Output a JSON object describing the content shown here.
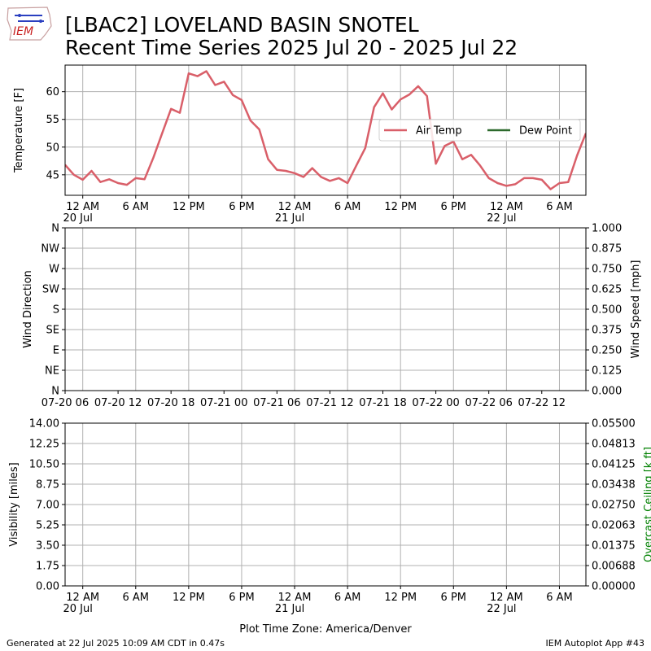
{
  "header": {
    "logo_text": "IEM",
    "title_line1": "[LBAC2] LOVELAND BASIN SNOTEL",
    "title_line2": "Recent Time Series 2025 Jul 20 - 2025 Jul 22"
  },
  "footer": {
    "generated": "Generated at 22 Jul 2025 10:09 AM CDT in 0.47s",
    "app": "IEM Autoplot App #43",
    "timezone_label": "Plot Time Zone: America/Denver"
  },
  "colors": {
    "air_temp": "#d95f69",
    "dew_point": "#2d6a2d",
    "ceiling_label": "#008000",
    "grid": "#b0b0b0"
  },
  "time_axis": {
    "start_hour": -2,
    "end_hour": 57,
    "ticks": [
      {
        "hour": 0,
        "label": "12 AM",
        "sub": "20 Jul"
      },
      {
        "hour": 6,
        "label": "6 AM",
        "sub": ""
      },
      {
        "hour": 12,
        "label": "12 PM",
        "sub": ""
      },
      {
        "hour": 18,
        "label": "6 PM",
        "sub": ""
      },
      {
        "hour": 24,
        "label": "12 AM",
        "sub": "21 Jul"
      },
      {
        "hour": 30,
        "label": "6 AM",
        "sub": ""
      },
      {
        "hour": 36,
        "label": "12 PM",
        "sub": ""
      },
      {
        "hour": 42,
        "label": "6 PM",
        "sub": ""
      },
      {
        "hour": 48,
        "label": "12 AM",
        "sub": "22 Jul"
      },
      {
        "hour": 54,
        "label": "6 AM",
        "sub": ""
      }
    ],
    "wind_ticks": [
      {
        "hour": -2,
        "label": "07-20 06"
      },
      {
        "hour": 4,
        "label": "07-20 12"
      },
      {
        "hour": 10,
        "label": "07-20 18"
      },
      {
        "hour": 16,
        "label": "07-21 00"
      },
      {
        "hour": 22,
        "label": "07-21 06"
      },
      {
        "hour": 28,
        "label": "07-21 12"
      },
      {
        "hour": 34,
        "label": "07-21 18"
      },
      {
        "hour": 40,
        "label": "07-22 00"
      },
      {
        "hour": 46,
        "label": "07-22 06"
      },
      {
        "hour": 52,
        "label": "07-22 12"
      }
    ]
  },
  "chart_data": [
    {
      "type": "line",
      "ylabel": "Temperature [F]",
      "ylim": [
        41.3,
        64.8
      ],
      "yticks": [
        45,
        50,
        55,
        60
      ],
      "grid": true,
      "legend_position": "right",
      "series": [
        {
          "name": "Air Temp",
          "x": [
            -2,
            -1,
            0,
            1,
            2,
            3,
            4,
            5,
            6,
            7,
            8,
            9,
            10,
            11,
            12,
            13,
            14,
            15,
            16,
            17,
            18,
            19,
            20,
            21,
            22,
            23,
            24,
            25,
            26,
            27,
            28,
            29,
            30,
            31,
            32,
            33,
            34,
            35,
            36,
            37,
            38,
            39,
            40,
            41,
            42,
            43,
            44,
            45,
            46,
            47,
            48,
            49,
            50,
            51,
            52,
            53,
            54,
            55,
            56,
            57
          ],
          "values": [
            46.8,
            45.0,
            44.1,
            45.7,
            43.7,
            44.2,
            43.5,
            43.2,
            44.4,
            44.2,
            48.1,
            52.5,
            56.9,
            56.2,
            63.3,
            62.8,
            63.7,
            61.2,
            61.8,
            59.4,
            58.5,
            54.8,
            53.2,
            47.8,
            45.9,
            45.7,
            45.3,
            44.6,
            46.2,
            44.6,
            43.9,
            44.4,
            43.5,
            46.7,
            49.8,
            57.2,
            59.7,
            56.8,
            58.6,
            59.5,
            61.0,
            59.2,
            47.0,
            50.2,
            51.0,
            47.8,
            48.6,
            46.7,
            44.4,
            43.5,
            43.0,
            43.3,
            44.4,
            44.4,
            44.1,
            42.4,
            43.5,
            43.7,
            48.5,
            52.5
          ]
        },
        {
          "name": "Dew Point",
          "x": [],
          "values": []
        }
      ]
    },
    {
      "type": "line",
      "ylabel": "Wind Direction",
      "ylabel_right": "Wind Speed [mph]",
      "yticks_left": [
        "N",
        "NE",
        "E",
        "SE",
        "S",
        "SW",
        "W",
        "NW",
        "N"
      ],
      "yticks_right": [
        "0.000",
        "0.125",
        "0.250",
        "0.375",
        "0.500",
        "0.625",
        "0.750",
        "0.875",
        "1.000"
      ],
      "ylim_right": [
        0,
        1
      ],
      "grid": true,
      "series": []
    },
    {
      "type": "line",
      "ylabel": "Visibility [miles]",
      "ylabel_right": "Overcast Ceiling [k ft]",
      "xlabel": "Plot Time Zone: America/Denver",
      "yticks_left": [
        "0.00",
        "1.75",
        "3.50",
        "5.25",
        "7.00",
        "8.75",
        "10.50",
        "12.25",
        "14.00"
      ],
      "yticks_right": [
        "0.00000",
        "0.00688",
        "0.01375",
        "0.02063",
        "0.02750",
        "0.03438",
        "0.04125",
        "0.04813",
        "0.05500"
      ],
      "ylim": [
        0,
        14
      ],
      "ylim_right": [
        0,
        0.055
      ],
      "grid": true,
      "series": []
    }
  ]
}
